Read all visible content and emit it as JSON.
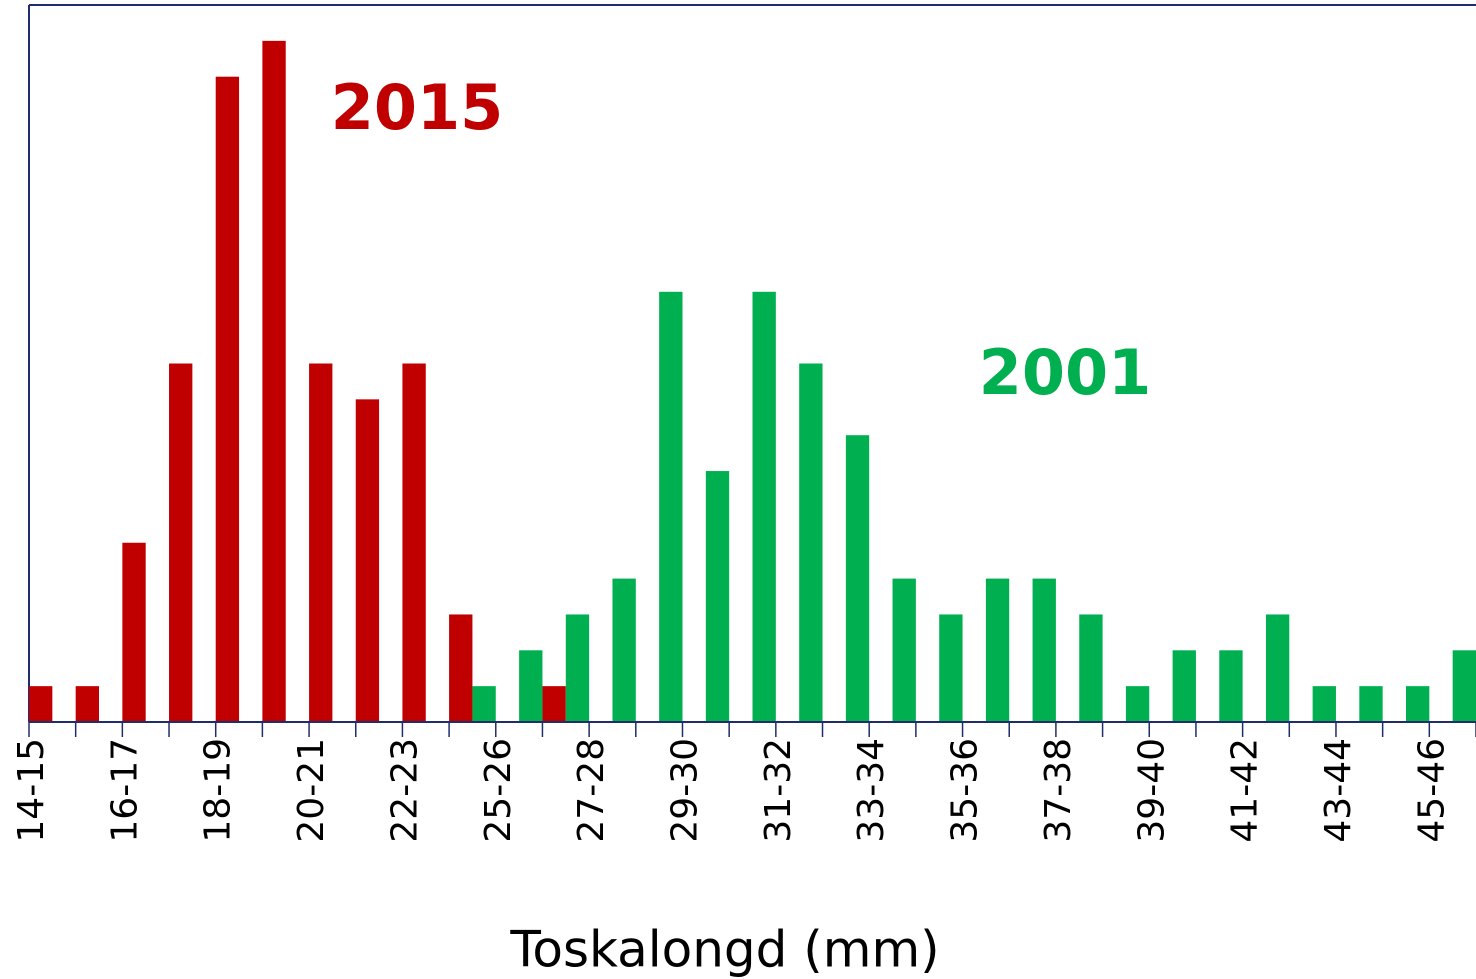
{
  "chart_data": {
    "type": "bar",
    "x_label": "Toskalongd (mm)",
    "categories": [
      "14-15",
      null,
      "16-17",
      null,
      "18-19",
      null,
      "20-21",
      null,
      "22-23",
      null,
      "25-26",
      null,
      "27-28",
      null,
      "29-30",
      null,
      "31-32",
      null,
      "33-34",
      null,
      "35-36",
      null,
      "37-38",
      null,
      "39-40",
      null,
      "41-42",
      null,
      "43-44",
      null,
      "45-46"
    ],
    "series": [
      {
        "name": "2015",
        "color": "#c00000",
        "values": [
          1,
          1,
          5,
          10,
          18,
          19,
          10,
          9,
          10,
          3,
          0,
          1,
          0,
          0,
          0,
          0,
          0,
          0,
          0,
          0,
          0,
          0,
          0,
          0,
          0,
          0,
          0,
          0,
          0,
          0,
          0
        ]
      },
      {
        "name": "2001",
        "color": "#00b050",
        "values": [
          0,
          0,
          0,
          0,
          0,
          0,
          0,
          0,
          0,
          1,
          2,
          3,
          4,
          12,
          7,
          12,
          10,
          8,
          4,
          3,
          4,
          4,
          3,
          1,
          2,
          2,
          3,
          1,
          1,
          1,
          2
        ]
      }
    ],
    "ylim": [
      0,
      20
    ]
  }
}
